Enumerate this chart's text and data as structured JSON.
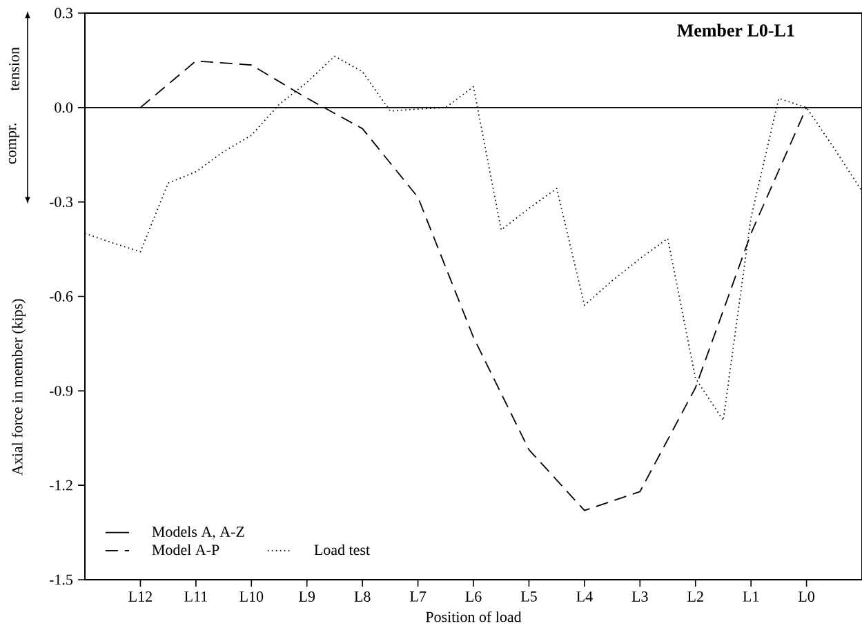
{
  "chart_data": {
    "type": "line",
    "title": "Member L0-L1",
    "xlabel": "Position of load",
    "ylabel": "Axial force in member (kips)",
    "annotations": [
      "tension",
      "compr."
    ],
    "categories": [
      null,
      null,
      "L12",
      null,
      "L11",
      null,
      "L10",
      null,
      "L9",
      null,
      "L8",
      null,
      "L7",
      null,
      "L6",
      null,
      "L5",
      null,
      "L4",
      null,
      "L3",
      null,
      "L2",
      null,
      "L1",
      null,
      "L0",
      null,
      null
    ],
    "ylim": [
      -1.5,
      0.3
    ],
    "yticks": [
      -1.5,
      -1.2,
      -0.9,
      -0.6,
      -0.3,
      {
        "value": 0,
        "label": "0.0"
      },
      0.3
    ],
    "grid": false,
    "legend": "bottom left",
    "marker": "none",
    "series": [
      {
        "name": "Models A, A-Z",
        "color": "#000000",
        "line_style": "solid",
        "values": [
          0,
          0,
          0,
          0,
          0,
          0,
          0,
          0,
          0,
          0,
          0,
          0,
          0,
          0,
          0,
          0,
          0,
          0,
          0,
          0,
          0,
          0,
          0,
          0,
          0,
          0,
          0,
          0,
          0
        ]
      },
      {
        "name": "Model A-P",
        "color": "#000000",
        "line_style": "dashed",
        "values": [
          null,
          null,
          0,
          null,
          0.148,
          null,
          0.135,
          null,
          0.03,
          null,
          -0.067,
          null,
          -0.285,
          null,
          -0.73,
          null,
          -1.087,
          null,
          -1.28,
          null,
          -1.22,
          null,
          -0.89,
          null,
          -0.4,
          null,
          0,
          null,
          null
        ]
      },
      {
        "name": "Load test",
        "color": "#000000",
        "line_style": "dotted",
        "values": [
          -0.4,
          -0.43,
          -0.458,
          -0.24,
          -0.204,
          -0.14,
          -0.088,
          0.01,
          0.08,
          0.163,
          0.114,
          -0.011,
          -0.005,
          0,
          0.066,
          -0.389,
          -0.32,
          -0.257,
          -0.628,
          -0.55,
          -0.48,
          -0.416,
          -0.86,
          -0.994,
          -0.35,
          0.029,
          0,
          -0.13,
          -0.266
        ]
      }
    ]
  }
}
